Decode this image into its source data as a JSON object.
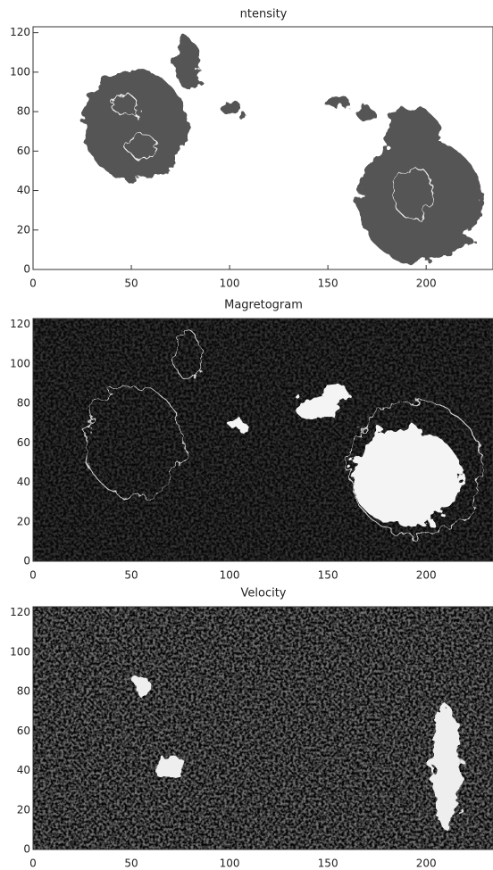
{
  "panels": [
    {
      "title": "ntensity",
      "xlim": [
        0,
        234
      ],
      "ylim": [
        0,
        123
      ],
      "xticks": [
        0,
        50,
        100,
        150,
        200
      ],
      "yticks": [
        0,
        20,
        40,
        60,
        80,
        100,
        120
      ]
    },
    {
      "title": "Magretogram",
      "xlim": [
        0,
        234
      ],
      "ylim": [
        0,
        123
      ],
      "xticks": [
        0,
        50,
        100,
        150,
        200
      ],
      "yticks": [
        0,
        20,
        40,
        60,
        80,
        100,
        120
      ]
    },
    {
      "title": "Velocity",
      "xlim": [
        0,
        234
      ],
      "ylim": [
        0,
        123
      ],
      "xticks": [
        0,
        50,
        100,
        150,
        200
      ],
      "yticks": [
        0,
        20,
        40,
        60,
        80,
        100,
        120
      ]
    }
  ]
}
